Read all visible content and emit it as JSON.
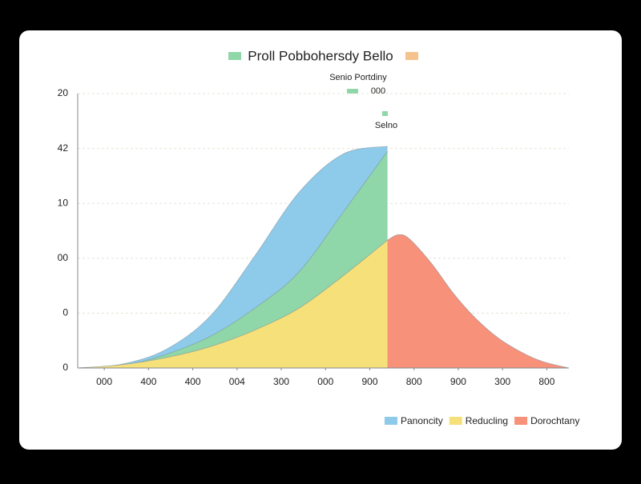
{
  "chart_data": {
    "type": "area",
    "title": "Proll Pobbohersdy Bello",
    "annotations": [
      "Senio Portdiny",
      "000",
      "Selno"
    ],
    "xlim": [
      0,
      11.1
    ],
    "ylim": [
      0,
      5
    ],
    "xticks": [
      {
        "value": 0.6,
        "label": "000"
      },
      {
        "value": 1.6,
        "label": "400"
      },
      {
        "value": 2.6,
        "label": "400"
      },
      {
        "value": 3.6,
        "label": "004"
      },
      {
        "value": 4.6,
        "label": "300"
      },
      {
        "value": 5.6,
        "label": "000"
      },
      {
        "value": 6.6,
        "label": "900"
      },
      {
        "value": 7.6,
        "label": "800"
      },
      {
        "value": 8.6,
        "label": "900"
      },
      {
        "value": 9.6,
        "label": "300"
      },
      {
        "value": 10.6,
        "label": "800"
      }
    ],
    "yticks": [
      {
        "value": 0,
        "label": "0"
      },
      {
        "value": 1,
        "label": "0"
      },
      {
        "value": 2,
        "label": "00"
      },
      {
        "value": 3,
        "label": "10"
      },
      {
        "value": 4,
        "label": "42"
      },
      {
        "value": 5,
        "label": "20"
      }
    ],
    "grid": true,
    "series": [
      {
        "name": "Panoncity",
        "color": "#8ecbea",
        "x": [
          0,
          1,
          2,
          3,
          4,
          5,
          6,
          7
        ],
        "values": [
          0,
          0.07,
          0.34,
          0.95,
          2.04,
          3.2,
          3.9,
          4.04
        ]
      },
      {
        "color": "#8fd6a8",
        "x": [
          0,
          1,
          2,
          3,
          4,
          5,
          6,
          7
        ],
        "values": [
          0,
          0.04,
          0.25,
          0.58,
          1.09,
          1.75,
          2.84,
          3.95
        ]
      },
      {
        "name": "Reducling",
        "color": "#f6e07a",
        "x": [
          0,
          1,
          2,
          3,
          4,
          5,
          6,
          7
        ],
        "values": [
          0,
          0.06,
          0.19,
          0.39,
          0.69,
          1.09,
          1.68,
          2.33
        ]
      },
      {
        "name": "Dorochtany",
        "color": "#f7917a",
        "x": [
          7,
          7.25,
          7.5,
          8,
          8.5,
          9,
          9.5,
          10,
          10.5,
          11.1
        ],
        "values": [
          2.33,
          2.43,
          2.35,
          1.9,
          1.35,
          0.9,
          0.55,
          0.3,
          0.12,
          0
        ]
      }
    ],
    "legend": "bottom-right"
  }
}
